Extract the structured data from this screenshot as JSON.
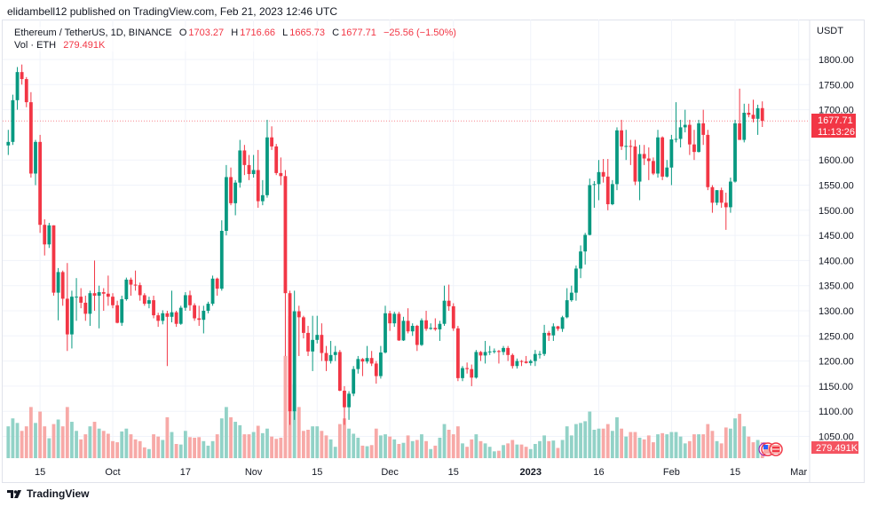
{
  "header": {
    "published": "elidambell12 published on TradingView.com, Feb 21, 2023 12:46 UTC"
  },
  "legend": {
    "symbol": "Ethereum / TetherUS, 1D, BINANCE",
    "o_label": "O",
    "o": "1703.27",
    "h_label": "H",
    "h": "1716.66",
    "l_label": "L",
    "l": "1665.73",
    "c_label": "C",
    "c": "1677.71",
    "change": "−25.56 (−1.50%)",
    "vol_label": "Vol · ETH",
    "vol": "279.491K"
  },
  "footer": {
    "logo_text": "TradingView"
  },
  "colors": {
    "up": "#089981",
    "down": "#f23645",
    "vol_up": "#92d2c7",
    "vol_down": "#f7a9a7",
    "grid": "#f0f3fa"
  },
  "chart_data": {
    "type": "candlestick",
    "interval": "1D",
    "start_date": "2022-09-08",
    "currency_label": "USDT",
    "y_ticks": [
      "1800.00",
      "1750.00",
      "1700.00",
      "1600.00",
      "1550.00",
      "1500.00",
      "1450.00",
      "1400.00",
      "1350.00",
      "1300.00",
      "1250.00",
      "1200.00",
      "1150.00",
      "1100.00",
      "1050.00"
    ],
    "x_ticks": [
      {
        "label": "15",
        "date": "2022-09-15"
      },
      {
        "label": "Oct",
        "date": "2022-10-01"
      },
      {
        "label": "17",
        "date": "2022-10-17"
      },
      {
        "label": "Nov",
        "date": "2022-11-01"
      },
      {
        "label": "15",
        "date": "2022-11-15"
      },
      {
        "label": "Dec",
        "date": "2022-12-01"
      },
      {
        "label": "15",
        "date": "2022-12-15"
      },
      {
        "label": "2023",
        "date": "2023-01-01"
      },
      {
        "label": "16",
        "date": "2023-01-16"
      },
      {
        "label": "Feb",
        "date": "2023-02-01"
      },
      {
        "label": "15",
        "date": "2023-02-15"
      },
      {
        "label": "Mar",
        "date": "2023-03-01"
      }
    ],
    "last_price": {
      "value": 1677.71,
      "label": "1677.71",
      "countdown": "11:13:26"
    },
    "last_volume_label": "279.491K",
    "ohlc": [
      [
        1629,
        1660,
        1610,
        1636
      ],
      [
        1636,
        1730,
        1630,
        1719
      ],
      [
        1719,
        1785,
        1700,
        1775
      ],
      [
        1775,
        1790,
        1750,
        1761
      ],
      [
        1761,
        1765,
        1705,
        1715
      ],
      [
        1715,
        1735,
        1565,
        1573
      ],
      [
        1573,
        1640,
        1550,
        1636
      ],
      [
        1636,
        1650,
        1455,
        1471
      ],
      [
        1471,
        1482,
        1410,
        1432
      ],
      [
        1432,
        1475,
        1425,
        1470
      ],
      [
        1470,
        1470,
        1330,
        1336
      ],
      [
        1336,
        1385,
        1281,
        1377
      ],
      [
        1377,
        1380,
        1310,
        1324
      ],
      [
        1324,
        1395,
        1220,
        1253
      ],
      [
        1253,
        1340,
        1225,
        1328
      ],
      [
        1328,
        1365,
        1280,
        1328
      ],
      [
        1328,
        1345,
        1305,
        1316
      ],
      [
        1316,
        1330,
        1280,
        1294
      ],
      [
        1294,
        1340,
        1270,
        1335
      ],
      [
        1335,
        1400,
        1300,
        1330
      ],
      [
        1330,
        1350,
        1265,
        1337
      ],
      [
        1337,
        1345,
        1300,
        1334
      ],
      [
        1334,
        1370,
        1310,
        1328
      ],
      [
        1328,
        1335,
        1305,
        1311
      ],
      [
        1311,
        1320,
        1275,
        1276
      ],
      [
        1276,
        1330,
        1270,
        1323
      ],
      [
        1323,
        1366,
        1320,
        1362
      ],
      [
        1362,
        1366,
        1330,
        1352
      ],
      [
        1352,
        1380,
        1340,
        1351
      ],
      [
        1351,
        1356,
        1320,
        1331
      ],
      [
        1331,
        1335,
        1310,
        1314
      ],
      [
        1314,
        1328,
        1305,
        1321
      ],
      [
        1321,
        1330,
        1285,
        1291
      ],
      [
        1291,
        1296,
        1268,
        1280
      ],
      [
        1280,
        1301,
        1273,
        1295
      ],
      [
        1295,
        1300,
        1190,
        1288
      ],
      [
        1288,
        1340,
        1277,
        1297
      ],
      [
        1297,
        1300,
        1268,
        1274
      ],
      [
        1274,
        1310,
        1272,
        1306
      ],
      [
        1306,
        1337,
        1300,
        1331
      ],
      [
        1331,
        1340,
        1300,
        1311
      ],
      [
        1311,
        1315,
        1280,
        1285
      ],
      [
        1285,
        1310,
        1270,
        1282
      ],
      [
        1282,
        1310,
        1255,
        1300
      ],
      [
        1300,
        1318,
        1295,
        1314
      ],
      [
        1314,
        1370,
        1310,
        1364
      ],
      [
        1364,
        1366,
        1330,
        1344
      ],
      [
        1344,
        1480,
        1340,
        1459
      ],
      [
        1459,
        1590,
        1450,
        1566
      ],
      [
        1566,
        1585,
        1510,
        1514
      ],
      [
        1514,
        1560,
        1490,
        1555
      ],
      [
        1555,
        1640,
        1545,
        1619
      ],
      [
        1619,
        1630,
        1570,
        1590
      ],
      [
        1590,
        1610,
        1560,
        1572
      ],
      [
        1572,
        1610,
        1565,
        1580
      ],
      [
        1580,
        1620,
        1505,
        1518
      ],
      [
        1518,
        1560,
        1510,
        1530
      ],
      [
        1530,
        1680,
        1525,
        1645
      ],
      [
        1645,
        1667,
        1620,
        1627
      ],
      [
        1627,
        1632,
        1570,
        1574
      ],
      [
        1574,
        1605,
        1550,
        1568
      ],
      [
        1568,
        1580,
        1210,
        1335
      ],
      [
        1335,
        1340,
        1073,
        1100
      ],
      [
        1100,
        1340,
        1083,
        1299
      ],
      [
        1299,
        1310,
        1210,
        1287
      ],
      [
        1287,
        1290,
        1245,
        1256
      ],
      [
        1256,
        1270,
        1210,
        1219
      ],
      [
        1219,
        1290,
        1180,
        1242
      ],
      [
        1242,
        1290,
        1235,
        1252
      ],
      [
        1252,
        1275,
        1200,
        1216
      ],
      [
        1216,
        1230,
        1180,
        1200
      ],
      [
        1200,
        1240,
        1195,
        1212
      ],
      [
        1212,
        1230,
        1200,
        1218
      ],
      [
        1218,
        1222,
        1140,
        1141
      ],
      [
        1141,
        1150,
        1073,
        1108
      ],
      [
        1108,
        1140,
        1083,
        1135
      ],
      [
        1135,
        1190,
        1130,
        1184
      ],
      [
        1184,
        1210,
        1175,
        1204
      ],
      [
        1204,
        1206,
        1170,
        1199
      ],
      [
        1199,
        1230,
        1195,
        1206
      ],
      [
        1206,
        1220,
        1190,
        1195
      ],
      [
        1195,
        1200,
        1155,
        1170
      ],
      [
        1170,
        1230,
        1165,
        1217
      ],
      [
        1217,
        1310,
        1215,
        1295
      ],
      [
        1295,
        1300,
        1260,
        1275
      ],
      [
        1275,
        1298,
        1268,
        1294
      ],
      [
        1294,
        1298,
        1240,
        1241
      ],
      [
        1241,
        1288,
        1240,
        1280
      ],
      [
        1280,
        1305,
        1255,
        1259
      ],
      [
        1259,
        1275,
        1250,
        1270
      ],
      [
        1270,
        1272,
        1220,
        1232
      ],
      [
        1232,
        1285,
        1230,
        1281
      ],
      [
        1281,
        1300,
        1260,
        1264
      ],
      [
        1264,
        1275,
        1262,
        1266
      ],
      [
        1266,
        1285,
        1260,
        1263
      ],
      [
        1263,
        1280,
        1240,
        1274
      ],
      [
        1274,
        1350,
        1270,
        1320
      ],
      [
        1320,
        1352,
        1300,
        1309
      ],
      [
        1309,
        1315,
        1260,
        1265
      ],
      [
        1265,
        1270,
        1160,
        1166
      ],
      [
        1166,
        1190,
        1160,
        1186
      ],
      [
        1186,
        1197,
        1175,
        1184
      ],
      [
        1184,
        1193,
        1150,
        1167
      ],
      [
        1167,
        1222,
        1165,
        1218
      ],
      [
        1218,
        1220,
        1200,
        1211
      ],
      [
        1211,
        1240,
        1195,
        1218
      ],
      [
        1218,
        1230,
        1212,
        1219
      ],
      [
        1219,
        1225,
        1215,
        1220
      ],
      [
        1220,
        1222,
        1195,
        1218
      ],
      [
        1218,
        1230,
        1212,
        1226
      ],
      [
        1226,
        1230,
        1200,
        1212
      ],
      [
        1212,
        1215,
        1185,
        1190
      ],
      [
        1190,
        1205,
        1185,
        1200
      ],
      [
        1200,
        1202,
        1190,
        1199
      ],
      [
        1199,
        1210,
        1195,
        1196
      ],
      [
        1196,
        1203,
        1191,
        1200
      ],
      [
        1200,
        1222,
        1190,
        1214
      ],
      [
        1214,
        1220,
        1205,
        1214
      ],
      [
        1214,
        1272,
        1210,
        1256
      ],
      [
        1256,
        1260,
        1240,
        1251
      ],
      [
        1251,
        1275,
        1240,
        1269
      ],
      [
        1269,
        1270,
        1260,
        1264
      ],
      [
        1264,
        1290,
        1258,
        1287
      ],
      [
        1287,
        1345,
        1285,
        1321
      ],
      [
        1321,
        1350,
        1318,
        1336
      ],
      [
        1336,
        1390,
        1320,
        1384
      ],
      [
        1384,
        1430,
        1365,
        1418
      ],
      [
        1418,
        1455,
        1392,
        1451
      ],
      [
        1451,
        1563,
        1450,
        1550
      ],
      [
        1551,
        1558,
        1505,
        1552
      ],
      [
        1552,
        1600,
        1520,
        1576
      ],
      [
        1576,
        1602,
        1555,
        1567
      ],
      [
        1567,
        1602,
        1500,
        1512
      ],
      [
        1512,
        1560,
        1510,
        1552
      ],
      [
        1552,
        1665,
        1540,
        1659
      ],
      [
        1659,
        1680,
        1620,
        1627
      ],
      [
        1627,
        1660,
        1600,
        1628
      ],
      [
        1628,
        1640,
        1590,
        1627
      ],
      [
        1627,
        1640,
        1550,
        1557
      ],
      [
        1557,
        1630,
        1520,
        1612
      ],
      [
        1612,
        1630,
        1590,
        1603
      ],
      [
        1603,
        1625,
        1560,
        1598
      ],
      [
        1598,
        1605,
        1570,
        1573
      ],
      [
        1573,
        1660,
        1565,
        1645
      ],
      [
        1645,
        1647,
        1560,
        1567
      ],
      [
        1567,
        1600,
        1565,
        1585
      ],
      [
        1585,
        1650,
        1550,
        1641
      ],
      [
        1641,
        1715,
        1635,
        1642
      ],
      [
        1642,
        1680,
        1625,
        1665
      ],
      [
        1665,
        1700,
        1655,
        1670
      ],
      [
        1670,
        1680,
        1610,
        1631
      ],
      [
        1631,
        1660,
        1600,
        1616
      ],
      [
        1616,
        1680,
        1615,
        1673
      ],
      [
        1673,
        1700,
        1630,
        1650
      ],
      [
        1650,
        1660,
        1540,
        1546
      ],
      [
        1546,
        1550,
        1495,
        1515
      ],
      [
        1515,
        1540,
        1510,
        1540
      ],
      [
        1540,
        1545,
        1505,
        1515
      ],
      [
        1515,
        1535,
        1461,
        1506
      ],
      [
        1506,
        1565,
        1495,
        1557
      ],
      [
        1557,
        1680,
        1555,
        1673
      ],
      [
        1673,
        1742,
        1640,
        1640
      ],
      [
        1640,
        1712,
        1635,
        1694
      ],
      [
        1694,
        1712,
        1685,
        1690
      ],
      [
        1690,
        1720,
        1675,
        1682
      ],
      [
        1682,
        1710,
        1650,
        1703
      ],
      [
        1703.27,
        1716.66,
        1665.73,
        1677.71
      ]
    ],
    "volume_k": [
      560,
      700,
      620,
      480,
      560,
      900,
      620,
      820,
      560,
      350,
      600,
      680,
      560,
      900,
      640,
      480,
      330,
      420,
      560,
      640,
      520,
      480,
      430,
      300,
      280,
      470,
      520,
      420,
      330,
      300,
      190,
      160,
      420,
      380,
      320,
      720,
      460,
      250,
      240,
      480,
      370,
      360,
      370,
      300,
      220,
      300,
      420,
      700,
      900,
      720,
      640,
      580,
      420,
      420,
      460,
      570,
      440,
      520,
      380,
      340,
      360,
      1800,
      2500,
      1300,
      900,
      480,
      500,
      560,
      560,
      480,
      400,
      330,
      200,
      600,
      700,
      520,
      430,
      360,
      220,
      210,
      230,
      520,
      400,
      420,
      380,
      330,
      250,
      270,
      400,
      300,
      320,
      420,
      300,
      160,
      220,
      360,
      600,
      500,
      420,
      560,
      260,
      200,
      330,
      420,
      300,
      260,
      200,
      120,
      130,
      230,
      260,
      320,
      240,
      240,
      200,
      160,
      250,
      300,
      400,
      300,
      310,
      180,
      320,
      560,
      400,
      600,
      620,
      650,
      820,
      500,
      520,
      520,
      600,
      480,
      720,
      520,
      380,
      460,
      460,
      360,
      330,
      400,
      280,
      420,
      440,
      420,
      460,
      460,
      380,
      260,
      300,
      420,
      420,
      420,
      600,
      480,
      300,
      260,
      540,
      520,
      700,
      780,
      560,
      380,
      280,
      320,
      279.491
    ]
  }
}
